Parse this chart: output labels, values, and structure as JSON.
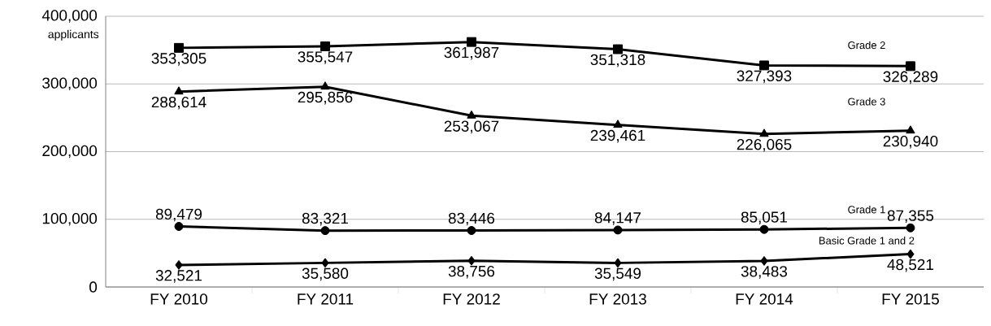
{
  "chart_data": {
    "type": "line",
    "ylabel": "applicants",
    "categories": [
      "FY 2010",
      "FY 2011",
      "FY 2012",
      "FY 2013",
      "FY 2014",
      "FY 2015"
    ],
    "series": [
      {
        "name": "Grade 2",
        "color": "#000000",
        "marker": "square",
        "values": [
          353305,
          355547,
          361987,
          351318,
          327393,
          326289
        ],
        "value_labels": [
          "353,305",
          "355,547",
          "361,987",
          "351,318",
          "327,393",
          "326,289"
        ]
      },
      {
        "name": "Grade 3",
        "color": "#000000",
        "marker": "triangle",
        "values": [
          288614,
          295856,
          253067,
          239461,
          226065,
          230940
        ],
        "value_labels": [
          "288,614",
          "295,856",
          "253,067",
          "239,461",
          "226,065",
          "230,940"
        ]
      },
      {
        "name": "Grade 1",
        "color": "#000000",
        "marker": "circle",
        "values": [
          89479,
          83321,
          83446,
          84147,
          85051,
          87355
        ],
        "value_labels": [
          "89,479",
          "83,321",
          "83,446",
          "84,147",
          "85,051",
          "87,355"
        ]
      },
      {
        "name": "Basic Grade 1    and 2",
        "color": "#000000",
        "marker": "diamond",
        "values": [
          32521,
          35580,
          38756,
          35549,
          38483,
          48521
        ],
        "value_labels": [
          "32,521",
          "35,580",
          "38,756",
          "35,549",
          "38,483",
          "48,521"
        ]
      }
    ],
    "ylim": [
      0,
      400000
    ],
    "yticks": [
      {
        "value": 0,
        "label": "0"
      },
      {
        "value": 100000,
        "label": "100,000"
      },
      {
        "value": 200000,
        "label": "200,000"
      },
      {
        "value": 300000,
        "label": "300,000"
      },
      {
        "value": 400000,
        "label": "400,000"
      }
    ],
    "grid": "y",
    "line_style": "solid"
  }
}
